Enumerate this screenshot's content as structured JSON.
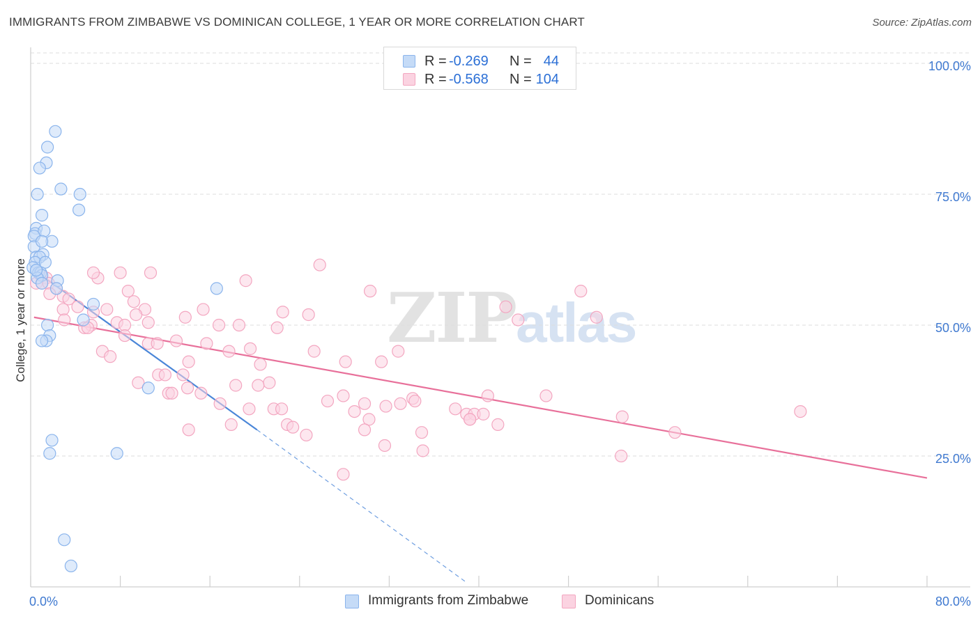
{
  "header": {
    "title": "IMMIGRANTS FROM ZIMBABWE VS DOMINICAN COLLEGE, 1 YEAR OR MORE CORRELATION CHART",
    "source": "Source: ZipAtlas.com"
  },
  "watermark": {
    "zip": "ZIP",
    "atlas": "atlas"
  },
  "legend_top": [
    {
      "r_label": "R =",
      "r_value": "-0.269",
      "n_label": "N =",
      "n_value": "44",
      "color": "#8ab4ec",
      "fill": "#c5dbf7"
    },
    {
      "r_label": "R =",
      "r_value": "-0.568",
      "n_label": "N =",
      "n_value": "104",
      "color": "#f3a6c0",
      "fill": "#fbd3e1"
    }
  ],
  "legend_bottom": [
    {
      "label": "Immigrants from Zimbabwe",
      "color": "#8ab4ec",
      "fill": "#c5dbf7"
    },
    {
      "label": "Dominicans",
      "color": "#f3a6c0",
      "fill": "#fbd3e1"
    }
  ],
  "chart_data": {
    "type": "scatter",
    "title": "IMMIGRANTS FROM ZIMBABWE VS DOMINICAN COLLEGE, 1 YEAR OR MORE CORRELATION CHART",
    "xlabel": "",
    "ylabel": "College, 1 year or more",
    "xlim": [
      0,
      80
    ],
    "ylim": [
      0,
      102
    ],
    "x_tick_labels": [
      "0.0%",
      "80.0%"
    ],
    "y_ticks": [
      25,
      50,
      75,
      100
    ],
    "y_tick_labels": [
      "25.0%",
      "50.0%",
      "75.0%",
      "100.0%"
    ],
    "grid": true,
    "legend_position": "top-center",
    "series": [
      {
        "name": "Immigrants from Zimbabwe",
        "color": "#4a86d8",
        "fill": "#c5dbf7",
        "stroke": "#8ab4ec",
        "points": [
          [
            2.2,
            87
          ],
          [
            1.5,
            84
          ],
          [
            1.4,
            81
          ],
          [
            0.8,
            80
          ],
          [
            2.7,
            76
          ],
          [
            4.4,
            75
          ],
          [
            0.6,
            75
          ],
          [
            4.3,
            72
          ],
          [
            1.0,
            71
          ],
          [
            0.5,
            68.5
          ],
          [
            0.4,
            67.5
          ],
          [
            1.2,
            68
          ],
          [
            0.3,
            67
          ],
          [
            1.9,
            66
          ],
          [
            0.3,
            65
          ],
          [
            1.0,
            66
          ],
          [
            0.5,
            63
          ],
          [
            1.1,
            63.5
          ],
          [
            0.8,
            63
          ],
          [
            0.4,
            62
          ],
          [
            1.3,
            62
          ],
          [
            0.2,
            61
          ],
          [
            0.5,
            60.5
          ],
          [
            0.7,
            60
          ],
          [
            0.9,
            60
          ],
          [
            1.0,
            59.5
          ],
          [
            0.6,
            59
          ],
          [
            2.4,
            58.5
          ],
          [
            1.0,
            58
          ],
          [
            16.6,
            57
          ],
          [
            2.3,
            57
          ],
          [
            5.6,
            54
          ],
          [
            4.7,
            51
          ],
          [
            1.5,
            50
          ],
          [
            1.7,
            48
          ],
          [
            1.4,
            47
          ],
          [
            1.0,
            47
          ],
          [
            10.5,
            38
          ],
          [
            1.9,
            28
          ],
          [
            1.7,
            25.5
          ],
          [
            7.7,
            25.5
          ],
          [
            3.0,
            9
          ],
          [
            3.6,
            4
          ],
          [
            0.5,
            60.5
          ]
        ],
        "trend": {
          "x": [
            0.3,
            20.2
          ],
          "y": [
            60.5,
            30.0
          ]
        },
        "trend_extension": {
          "x": [
            20.2,
            38.8
          ],
          "y": [
            30.0,
            1.0
          ]
        }
      },
      {
        "name": "Dominicans",
        "color": "#e8709a",
        "fill": "#fbd3e1",
        "stroke": "#f3a6c0",
        "points": [
          [
            25.8,
            61.5
          ],
          [
            8.0,
            60
          ],
          [
            10.7,
            60
          ],
          [
            0.9,
            59.5
          ],
          [
            1.4,
            59
          ],
          [
            6.0,
            59
          ],
          [
            19.2,
            58.5
          ],
          [
            0.5,
            58
          ],
          [
            1.0,
            58
          ],
          [
            1.6,
            58
          ],
          [
            2.3,
            57
          ],
          [
            8.7,
            56.5
          ],
          [
            30.3,
            56.5
          ],
          [
            49.1,
            56.5
          ],
          [
            1.7,
            56
          ],
          [
            2.9,
            55.5
          ],
          [
            3.4,
            55
          ],
          [
            9.2,
            54.5
          ],
          [
            42.4,
            53.5
          ],
          [
            4.2,
            53.5
          ],
          [
            2.9,
            53
          ],
          [
            6.8,
            53
          ],
          [
            10.2,
            53
          ],
          [
            15.4,
            53
          ],
          [
            5.6,
            52.5
          ],
          [
            9.4,
            52
          ],
          [
            22.5,
            52.5
          ],
          [
            24.8,
            52
          ],
          [
            13.8,
            51.5
          ],
          [
            50.5,
            51.5
          ],
          [
            3.0,
            51
          ],
          [
            43.5,
            51
          ],
          [
            7.7,
            50.5
          ],
          [
            10.5,
            50.5
          ],
          [
            5.4,
            50
          ],
          [
            8.4,
            50
          ],
          [
            16.8,
            50
          ],
          [
            18.6,
            50
          ],
          [
            4.8,
            49.5
          ],
          [
            5.1,
            49.5
          ],
          [
            22.0,
            49.5
          ],
          [
            8.4,
            48
          ],
          [
            10.5,
            46.5
          ],
          [
            11.3,
            46.5
          ],
          [
            13.0,
            47
          ],
          [
            15.7,
            46.5
          ],
          [
            19.6,
            45.5
          ],
          [
            6.4,
            45
          ],
          [
            17.7,
            45
          ],
          [
            25.3,
            45
          ],
          [
            32.8,
            45
          ],
          [
            7.1,
            44
          ],
          [
            14.1,
            43
          ],
          [
            28.1,
            43
          ],
          [
            31.3,
            43
          ],
          [
            20.5,
            42.5
          ],
          [
            11.4,
            40.5
          ],
          [
            12.0,
            40.5
          ],
          [
            13.6,
            40.5
          ],
          [
            9.6,
            39
          ],
          [
            21.3,
            39
          ],
          [
            18.3,
            38.5
          ],
          [
            20.3,
            38.5
          ],
          [
            14.0,
            38
          ],
          [
            12.3,
            37
          ],
          [
            12.6,
            37
          ],
          [
            15.2,
            37
          ],
          [
            27.9,
            36.5
          ],
          [
            34.1,
            36
          ],
          [
            40.8,
            36.5
          ],
          [
            46.0,
            36.5
          ],
          [
            34.3,
            35.5
          ],
          [
            26.5,
            35.5
          ],
          [
            16.9,
            35
          ],
          [
            29.8,
            35
          ],
          [
            31.7,
            34.5
          ],
          [
            33.0,
            35
          ],
          [
            19.5,
            34
          ],
          [
            21.7,
            34
          ],
          [
            22.4,
            34
          ],
          [
            28.9,
            33.5
          ],
          [
            37.9,
            34
          ],
          [
            38.9,
            33
          ],
          [
            39.6,
            33
          ],
          [
            40.4,
            33
          ],
          [
            68.7,
            33.5
          ],
          [
            52.8,
            32.5
          ],
          [
            30.2,
            32
          ],
          [
            39.2,
            32
          ],
          [
            39.2,
            32
          ],
          [
            17.9,
            31
          ],
          [
            41.7,
            31
          ],
          [
            22.9,
            31
          ],
          [
            23.4,
            30.5
          ],
          [
            14.1,
            30
          ],
          [
            29.8,
            30
          ],
          [
            34.9,
            29.5
          ],
          [
            57.5,
            29.5
          ],
          [
            24.6,
            29
          ],
          [
            31.6,
            27
          ],
          [
            35.0,
            26
          ],
          [
            52.7,
            25
          ],
          [
            27.9,
            21.5
          ],
          [
            5.6,
            60
          ]
        ],
        "trend": {
          "x": [
            0.3,
            80.0
          ],
          "y": [
            51.5,
            20.8
          ]
        }
      }
    ]
  }
}
